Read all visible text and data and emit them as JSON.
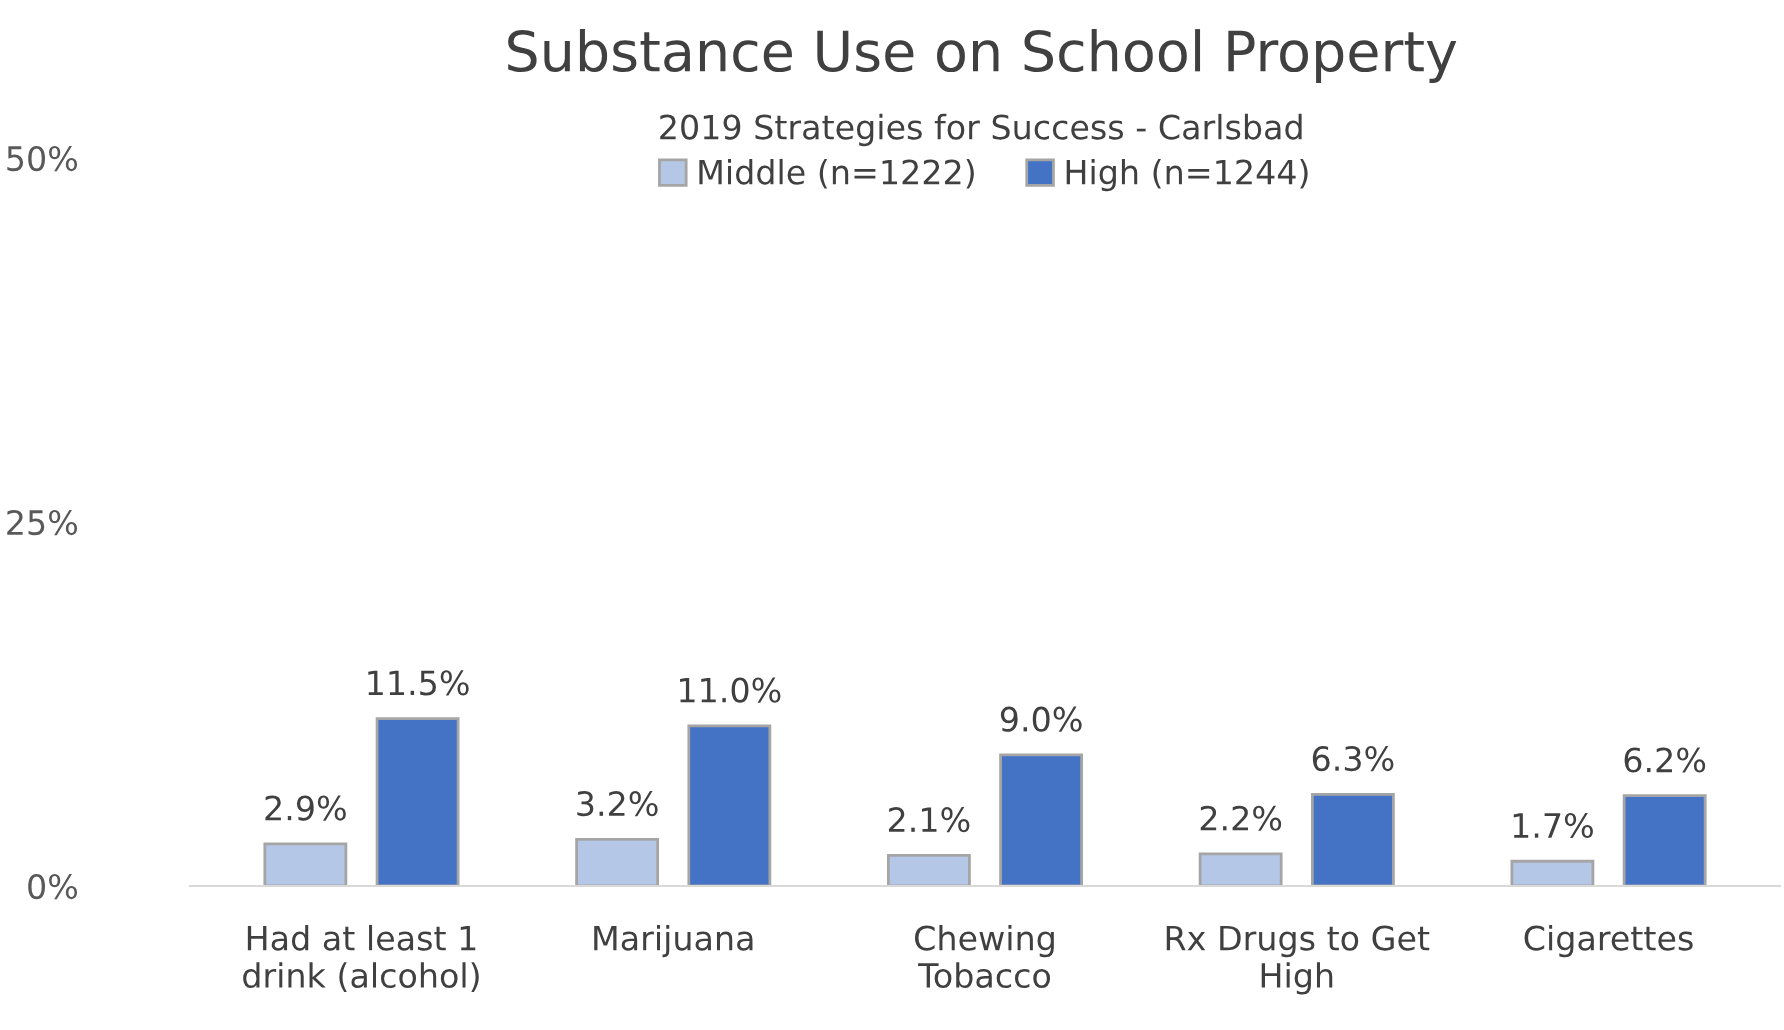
{
  "chart_data": {
    "type": "bar",
    "title": "Substance Use on School Property",
    "subtitle": "2019 Strategies for Success - Carlsbad",
    "categories": [
      "Had at least 1\ndrink (alcohol)",
      "Marijuana",
      "Chewing\nTobacco",
      "Rx Drugs to Get\nHigh",
      "Cigarettes"
    ],
    "series": [
      {
        "name": "Middle (n=1222)",
        "color": "#b4c7e7",
        "values": [
          2.9,
          3.2,
          2.1,
          2.2,
          1.7
        ],
        "value_labels": [
          "2.9%",
          "3.2%",
          "2.1%",
          "2.2%",
          "1.7%"
        ]
      },
      {
        "name": "High (n=1244)",
        "color": "#4472c4",
        "values": [
          11.5,
          11.0,
          9.0,
          6.3,
          6.2
        ],
        "value_labels": [
          "11.5%",
          "11.0%",
          "9.0%",
          "6.3%",
          "6.2%"
        ]
      }
    ],
    "ylim": [
      0,
      50
    ],
    "yticks": [
      {
        "value": 0,
        "label": "0%"
      },
      {
        "value": 25,
        "label": "25%"
      },
      {
        "value": 50,
        "label": "50%"
      }
    ],
    "grid": false,
    "legend": "top"
  }
}
